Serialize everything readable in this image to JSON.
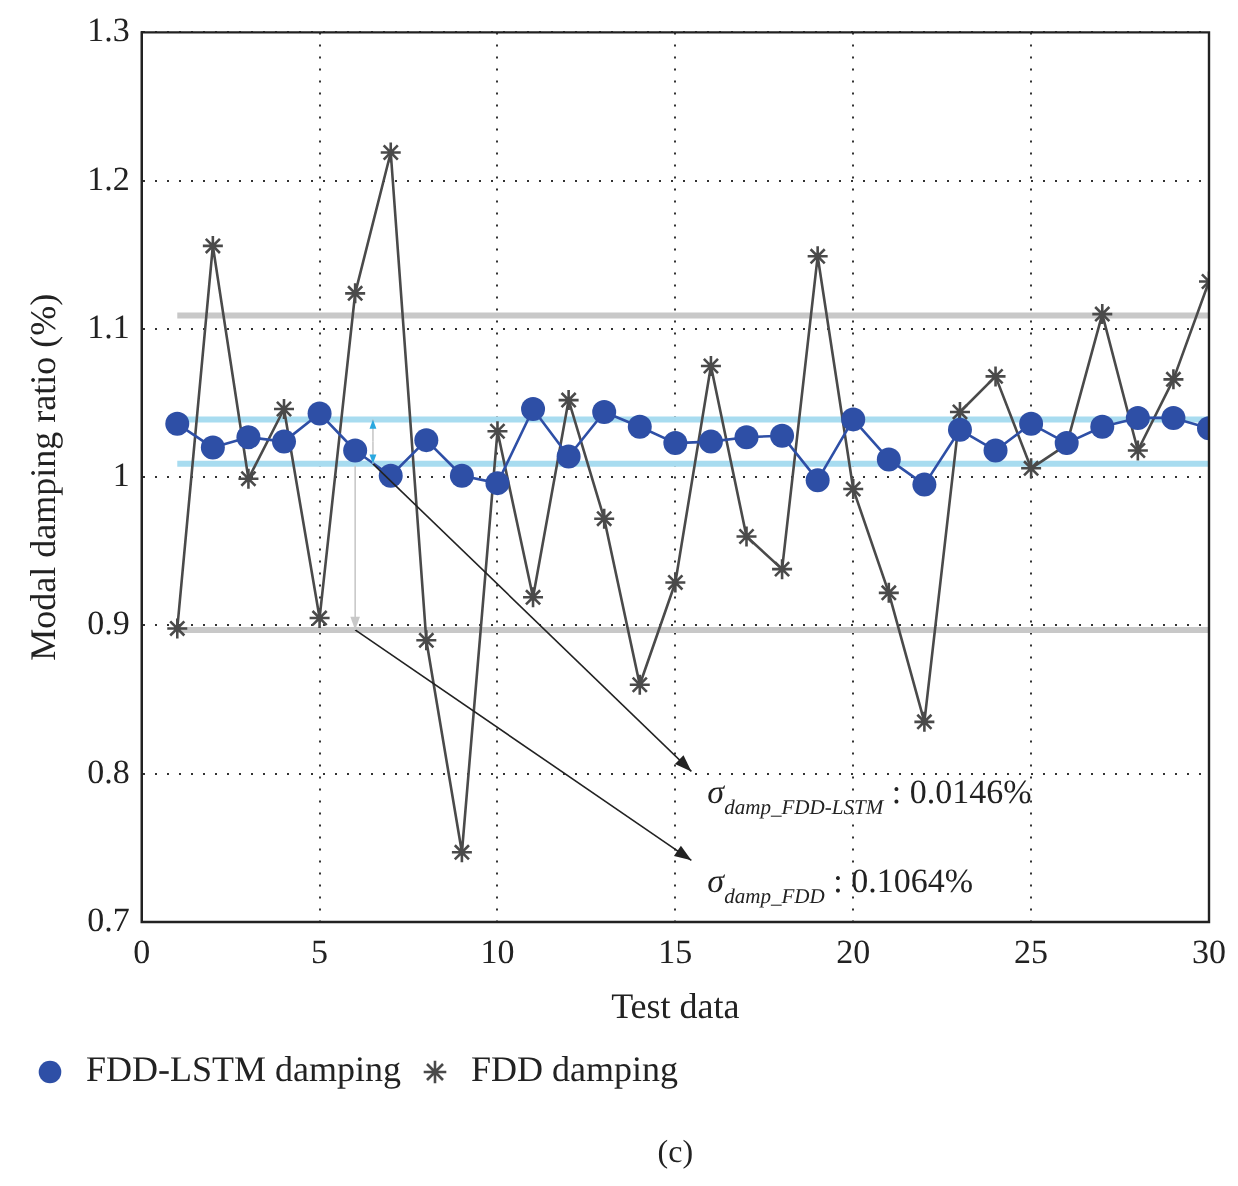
{
  "chart_data": {
    "type": "line",
    "xlabel": "Test data",
    "ylabel": "Modal damping ratio (%)",
    "x": [
      1,
      2,
      3,
      4,
      5,
      6,
      7,
      8,
      9,
      10,
      11,
      12,
      13,
      14,
      15,
      16,
      17,
      18,
      19,
      20,
      21,
      22,
      23,
      24,
      25,
      26,
      27,
      28,
      29,
      30
    ],
    "series": [
      {
        "name": "FDD-LSTM damping",
        "color": "#2e4fa6",
        "marker": "circle",
        "values": [
          1.036,
          1.02,
          1.027,
          1.024,
          1.043,
          1.018,
          1.001,
          1.025,
          1.001,
          0.996,
          1.046,
          1.014,
          1.044,
          1.034,
          1.023,
          1.024,
          1.027,
          1.028,
          0.998,
          1.039,
          1.012,
          0.995,
          1.032,
          1.018,
          1.036,
          1.023,
          1.034,
          1.04,
          1.04,
          1.033
        ]
      },
      {
        "name": "FDD damping",
        "color": "#4a4a4a",
        "marker": "cross",
        "values": [
          0.898,
          1.156,
          0.999,
          1.046,
          0.905,
          1.124,
          1.219,
          0.89,
          0.747,
          1.031,
          0.919,
          1.052,
          0.972,
          0.86,
          0.929,
          1.075,
          0.96,
          0.938,
          1.149,
          0.992,
          0.922,
          0.835,
          1.044,
          1.068,
          1.006,
          1.022,
          1.11,
          1.018,
          1.066,
          1.132
        ]
      }
    ],
    "ref_lines": [
      {
        "axis": "y",
        "value": 1.109,
        "color": "#c8c8c8"
      },
      {
        "axis": "y",
        "value": 0.897,
        "color": "#c8c8c8"
      },
      {
        "axis": "y",
        "value": 1.039,
        "color": "#a8dcf0"
      },
      {
        "axis": "y",
        "value": 1.009,
        "color": "#a8dcf0"
      }
    ],
    "annotations": [
      "σ$_{damp_FDD-LSTM}$ : 0.0146%",
      "σ$_{damp_FDD}$ : 0.1064%",
      "(c)"
    ],
    "xlim": [
      0,
      30
    ],
    "xticks": [
      0,
      5,
      10,
      15,
      20,
      25,
      30
    ],
    "ylim": [
      0.7,
      1.3
    ],
    "yticks": [
      0.7,
      0.8,
      0.9,
      1,
      1.1,
      1.2,
      1.3
    ],
    "grid": true,
    "legend": "bottom left",
    "line_style": "solid"
  }
}
